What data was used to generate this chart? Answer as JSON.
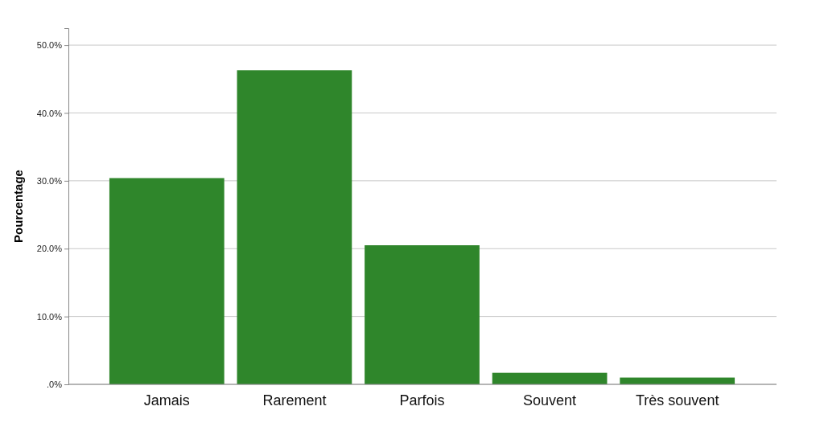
{
  "chart_data": {
    "type": "bar",
    "ylabel": "Pourcentage",
    "categories": [
      "Jamais",
      "Rarement",
      "Parfois",
      "Souvent",
      "Très souvent"
    ],
    "values": [
      30.4,
      46.3,
      20.5,
      1.7,
      1.0
    ],
    "color": "#2f862b",
    "ylim": [
      0,
      52.5
    ],
    "yticks": [
      {
        "value": 0,
        "label": ".0%"
      },
      {
        "value": 10,
        "label": "10.0%"
      },
      {
        "value": 20,
        "label": "20.0%"
      },
      {
        "value": 30,
        "label": "30.0%"
      },
      {
        "value": 40,
        "label": "40.0%"
      },
      {
        "value": 50,
        "label": "50.0%"
      }
    ],
    "grid": "y"
  }
}
